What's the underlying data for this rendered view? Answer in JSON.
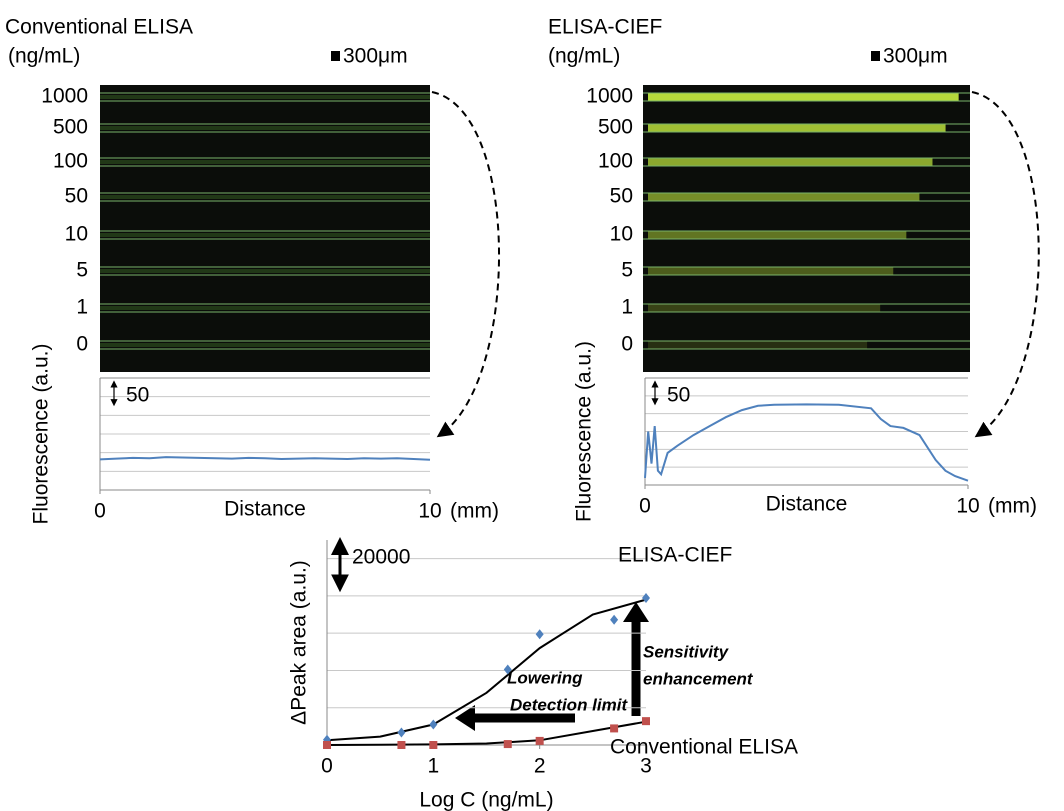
{
  "panels": [
    {
      "title": "Conventional ELISA",
      "unit": "(ng/mL)",
      "scale_bar": "300μm",
      "rows": [
        "1000",
        "500",
        "100",
        "50",
        "10",
        "5",
        "1",
        "0"
      ]
    },
    {
      "title": "ELISA-CIEF",
      "unit": "(ng/mL)",
      "scale_bar": "300μm",
      "rows": [
        "1000",
        "500",
        "100",
        "50",
        "10",
        "5",
        "1",
        "0"
      ]
    }
  ],
  "chart_data": [
    {
      "type": "line",
      "ylabel": "Fluorescence (a.u.)",
      "xlabel": "Distance",
      "xunit": "(mm)",
      "scale_bar": 50,
      "xlim": [
        0,
        10
      ],
      "xticks": [
        0,
        10
      ],
      "ylim": [
        0,
        300
      ],
      "color": "#4f81bd",
      "x": [
        0,
        0.5,
        1,
        1.5,
        2,
        2.5,
        3,
        3.5,
        4,
        4.5,
        5,
        5.5,
        6,
        6.5,
        7,
        7.5,
        8,
        8.5,
        9,
        9.5,
        10
      ],
      "values": [
        82,
        84,
        86,
        85,
        88,
        87,
        86,
        85,
        84,
        86,
        85,
        83,
        84,
        85,
        84,
        83,
        85,
        84,
        85,
        83,
        81
      ]
    },
    {
      "type": "line",
      "ylabel": "Fluorescence (a.u.)",
      "xlabel": "Distance",
      "xunit": "(mm)",
      "scale_bar": 50,
      "xlim": [
        0,
        10
      ],
      "xticks": [
        0,
        10
      ],
      "ylim": [
        0,
        300
      ],
      "color": "#4f81bd",
      "x": [
        0,
        0.1,
        0.2,
        0.3,
        0.4,
        0.5,
        0.7,
        1,
        1.5,
        2,
        2.5,
        3,
        3.5,
        4,
        5,
        6,
        7,
        7.3,
        7.6,
        8,
        8.5,
        9,
        9.3,
        9.6,
        10
      ],
      "values": [
        20,
        150,
        60,
        165,
        40,
        30,
        90,
        110,
        140,
        165,
        190,
        210,
        222,
        225,
        226,
        225,
        215,
        185,
        165,
        160,
        140,
        70,
        40,
        25,
        12
      ]
    },
    {
      "type": "scatter",
      "ylabel": "ΔPeak area (a.u.)",
      "xlabel": "Log C  (ng/mL)",
      "scale_bar": 20000,
      "xlim": [
        0,
        3
      ],
      "xticks": [
        0,
        1,
        2,
        3
      ],
      "ylim": [
        0,
        110000
      ],
      "series": [
        {
          "name": "ELISA-CIEF",
          "color": "#4f81bd",
          "marker": "diamond",
          "x": [
            0,
            0.7,
            1,
            1.7,
            2,
            2.7,
            3
          ],
          "values": [
            2800,
            6700,
            11000,
            40500,
            59400,
            67200,
            78900
          ],
          "fit_x": [
            0,
            0.5,
            1,
            1.5,
            2,
            2.5,
            3
          ],
          "fit_values": [
            2500,
            4500,
            11000,
            28000,
            52000,
            70000,
            78000
          ]
        },
        {
          "name": "Conventional ELISA",
          "color": "#c0504d",
          "marker": "square",
          "x": [
            0,
            0.7,
            1,
            1.7,
            2,
            2.7,
            3
          ],
          "values": [
            0,
            0,
            0,
            500,
            2200,
            8900,
            12800
          ],
          "fit_x": [
            0,
            0.5,
            1,
            1.5,
            2,
            2.5,
            3
          ],
          "fit_values": [
            0,
            100,
            300,
            800,
            2500,
            7500,
            12500
          ]
        }
      ],
      "annotations": [
        "Lowering",
        "Detection limit",
        "Sensitivity",
        "enhancement"
      ]
    }
  ]
}
